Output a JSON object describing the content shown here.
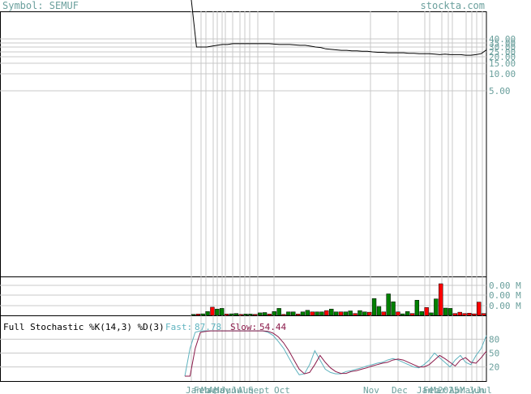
{
  "header": {
    "symbol_label": "Symbol: SEMUF",
    "site": "stockta.com"
  },
  "colors": {
    "background": "#ffffff",
    "grid": "#c8c8c8",
    "frame": "#000000",
    "axis_text": "#6a9f9c",
    "price_line": "#000000",
    "volume_up": "#008000",
    "volume_down": "#ff0000",
    "stoch_fast": "#5fb3bf",
    "stoch_slow": "#8b1a4a"
  },
  "chart_data": [
    {
      "type": "line",
      "panel": "price",
      "y_ticks": [
        "40.00",
        "35.00",
        "30.00",
        "25.00",
        "20.00",
        "15.00",
        "10.00",
        "5.00"
      ],
      "y_tick_values": [
        40,
        35,
        30,
        25,
        20,
        15,
        10,
        5
      ],
      "x_ticks": [
        "Jan",
        "Feb",
        "Mar",
        "Apr",
        "May",
        "Jun",
        "Jul",
        "Aug",
        "Sept",
        "Oct",
        "Nov",
        "Dec",
        "Jan",
        "Feb",
        "Mar",
        "2025",
        "Apr",
        "May",
        "Jun",
        "Jul"
      ],
      "series": [
        {
          "values": [
            520,
            30,
            30,
            30,
            31,
            32,
            33,
            33,
            34,
            34,
            34,
            34,
            34,
            34,
            34,
            34,
            33.5,
            33,
            33,
            33,
            32.5,
            32,
            32,
            31,
            30,
            29.5,
            28,
            27.5,
            27,
            26.5,
            26.5,
            26,
            26,
            25.5,
            25.5,
            25,
            24.5,
            24.5,
            24,
            24,
            24,
            24,
            23.5,
            23.5,
            23,
            23,
            23,
            22.5,
            22,
            22.5,
            22,
            22,
            22,
            21.5,
            21.5,
            22,
            23,
            27
          ]
        }
      ]
    },
    {
      "type": "bar",
      "panel": "volume",
      "y_ticks": [
        "0.00 M",
        "0.00 M",
        "0.00 M"
      ],
      "up_values": [
        0.3,
        0.5,
        1.2,
        2.0,
        2.2,
        0.5,
        0.6,
        0.4,
        0.4,
        0.8,
        0.9,
        1.2,
        2.2,
        1.1,
        1.1,
        1.1,
        1.6,
        1.1,
        1.1,
        2.0,
        1.1,
        1.1,
        1.4,
        1.5,
        1.1,
        5.3,
        2.8,
        6.8,
        4.3,
        0.5,
        1.2,
        4.8,
        1.2,
        0.8,
        5.2,
        2.3,
        2.2
      ],
      "down_values": [
        0.4,
        2.6,
        0.4,
        0.3,
        0.3,
        0.4,
        0.3,
        0.4,
        1.1,
        1.5,
        1.1,
        0.6,
        1.0,
        1.1,
        1.1,
        0.6,
        2.5,
        10.0,
        0.6,
        1.0,
        0.6,
        0.7,
        0.5,
        4.2,
        0.6
      ]
    },
    {
      "type": "line",
      "panel": "stochastic",
      "title": "Full Stochastic %K(14,3) %D(3)",
      "fast_label": "Fast:",
      "fast_value": "87.78",
      "slow_label": "Slow:",
      "slow_value": "54.44",
      "y_ticks": [
        "80",
        "50",
        "20"
      ],
      "y_tick_values": [
        80,
        50,
        20
      ],
      "series": [
        {
          "name": "Fast",
          "values": [
            0,
            60,
            95,
            98,
            98,
            98,
            98,
            98,
            98,
            98,
            98,
            98,
            98,
            98,
            98,
            98,
            95,
            88,
            75,
            60,
            40,
            20,
            3,
            5,
            25,
            55,
            35,
            15,
            8,
            5,
            5,
            10,
            12,
            15,
            18,
            22,
            25,
            28,
            30,
            35,
            38,
            35,
            30,
            25,
            20,
            18,
            25,
            35,
            50,
            40,
            30,
            20,
            35,
            45,
            30,
            25,
            45,
            60,
            88
          ]
        },
        {
          "name": "Slow",
          "values": [
            0,
            0,
            60,
            95,
            97,
            98,
            98,
            98,
            98,
            98,
            98,
            98,
            98,
            98,
            98,
            98,
            97,
            93,
            85,
            72,
            55,
            35,
            15,
            5,
            8,
            25,
            45,
            30,
            18,
            10,
            6,
            6,
            10,
            12,
            15,
            18,
            22,
            25,
            28,
            30,
            35,
            37,
            35,
            30,
            25,
            20,
            20,
            25,
            35,
            45,
            38,
            30,
            22,
            35,
            40,
            30,
            28,
            40,
            54
          ]
        }
      ]
    }
  ]
}
